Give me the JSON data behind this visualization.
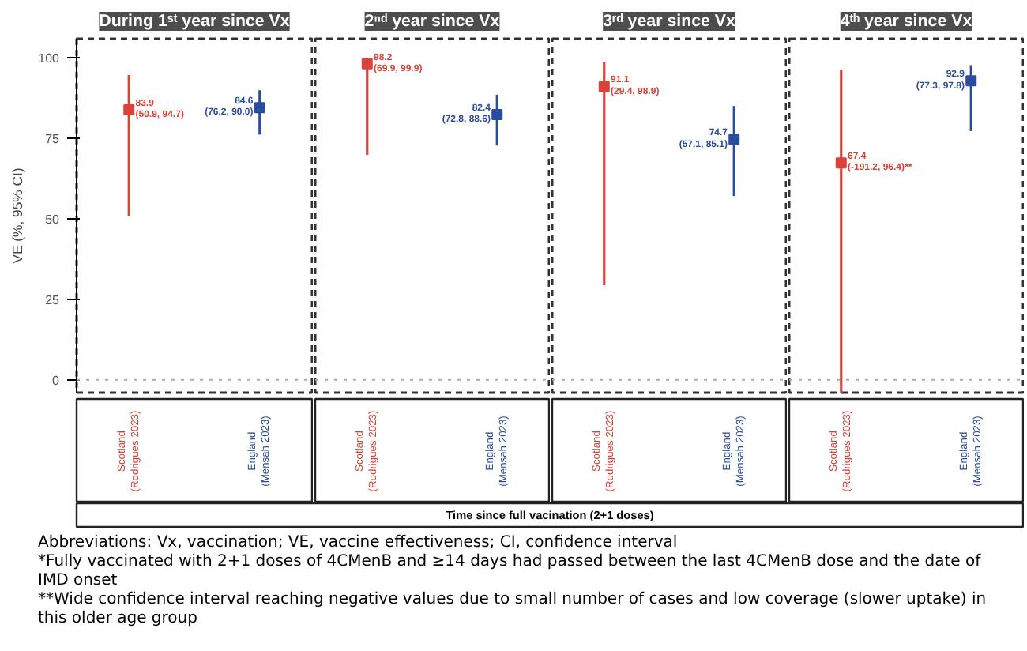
{
  "chart_data": [
    {
      "type": "scatter",
      "title": "During 1ˢᵗ year since Vx",
      "ylabel": "VE (%, 95% CI)",
      "categories": [
        "Scotland\n(Rodrigues 2023)",
        "England\n(Mensah 2023)"
      ],
      "values": [
        83.9,
        84.6
      ],
      "colors": [
        "#d9433a",
        "#2a4d9b"
      ],
      "errors": [
        [
          50.9,
          94.7
        ],
        [
          76.2,
          90.0
        ]
      ],
      "value_labels": [
        "83.9\n(50.9, 94.7)",
        "84.6\n(76.2, 90.0)"
      ],
      "marker": "square",
      "ylim": [
        -4,
        106
      ],
      "yticks": [
        0,
        25,
        50,
        75,
        100
      ],
      "grid": false,
      "ref_lines": [
        {
          "axis": "y",
          "value": 0,
          "color": "#aaaaaa",
          "line_style": "dotted"
        }
      ],
      "annotations": [
        "Time since full vacination (2+1 doses)",
        "Abbreviations: Vx, vaccination; VE, vaccine effectiveness; CI, confidence interval",
        "*Fully vaccinated with 2+1 doses of 4CMenB and ≥14 days had passed between the last 4CMenB dose and the date of IMD onset",
        "**Wide confidence interval reaching negative values due to small number of cases and low coverage (slower uptake) in this older age group"
      ]
    },
    {
      "type": "scatter",
      "title": "2ⁿᵈ year since Vx",
      "categories": [
        "Scotland\n(Rodrigues 2023)",
        "England\n(Mensah 2023)"
      ],
      "values": [
        98.2,
        82.4
      ],
      "colors": [
        "#d9433a",
        "#2a4d9b"
      ],
      "errors": [
        [
          69.9,
          99.9
        ],
        [
          72.8,
          88.6
        ]
      ],
      "value_labels": [
        "98.2\n(69.9, 99.9)",
        "82.4\n(72.8, 88.6)"
      ],
      "marker": "square",
      "ylim": [
        -4,
        106
      ],
      "yticks": [
        0,
        25,
        50,
        75,
        100
      ],
      "tick_labels": "x",
      "grid": false,
      "ref_lines": [
        {
          "axis": "y",
          "value": 0,
          "color": "#aaaaaa",
          "line_style": "dotted"
        }
      ]
    },
    {
      "type": "scatter",
      "title": "3ʳᵈ year since Vx",
      "categories": [
        "Scotland\n(Rodrigues 2023)",
        "England\n(Mensah 2023)"
      ],
      "values": [
        91.1,
        74.7
      ],
      "colors": [
        "#d9433a",
        "#2a4d9b"
      ],
      "errors": [
        [
          29.4,
          98.9
        ],
        [
          57.1,
          85.1
        ]
      ],
      "value_labels": [
        "91.1\n(29.4, 98.9)",
        "74.7\n(57.1, 85.1)"
      ],
      "marker": "square",
      "ylim": [
        -4,
        106
      ],
      "yticks": [
        0,
        25,
        50,
        75,
        100
      ],
      "tick_labels": "x",
      "grid": false,
      "ref_lines": [
        {
          "axis": "y",
          "value": 0,
          "color": "#aaaaaa",
          "line_style": "dotted"
        }
      ]
    },
    {
      "type": "scatter",
      "title": "4ᵗʰ year since Vx",
      "categories": [
        "Scotland\n(Rodrigues 2023)",
        "England\n(Mensah 2023)"
      ],
      "values": [
        67.4,
        92.9
      ],
      "colors": [
        "#d9433a",
        "#2a4d9b"
      ],
      "errors": [
        [
          -191.2,
          96.4
        ],
        [
          77.3,
          97.8
        ]
      ],
      "value_labels": [
        "67.4\n(-191.2, 96.4)**",
        "92.9\n(77.3, 97.8)"
      ],
      "marker": "square",
      "ylim": [
        -4,
        106
      ],
      "yticks": [
        0,
        25,
        50,
        75,
        100
      ],
      "tick_labels": "x",
      "grid": false,
      "ref_lines": [
        {
          "axis": "y",
          "value": 0,
          "color": "#aaaaaa",
          "line_style": "dotted"
        }
      ]
    }
  ]
}
